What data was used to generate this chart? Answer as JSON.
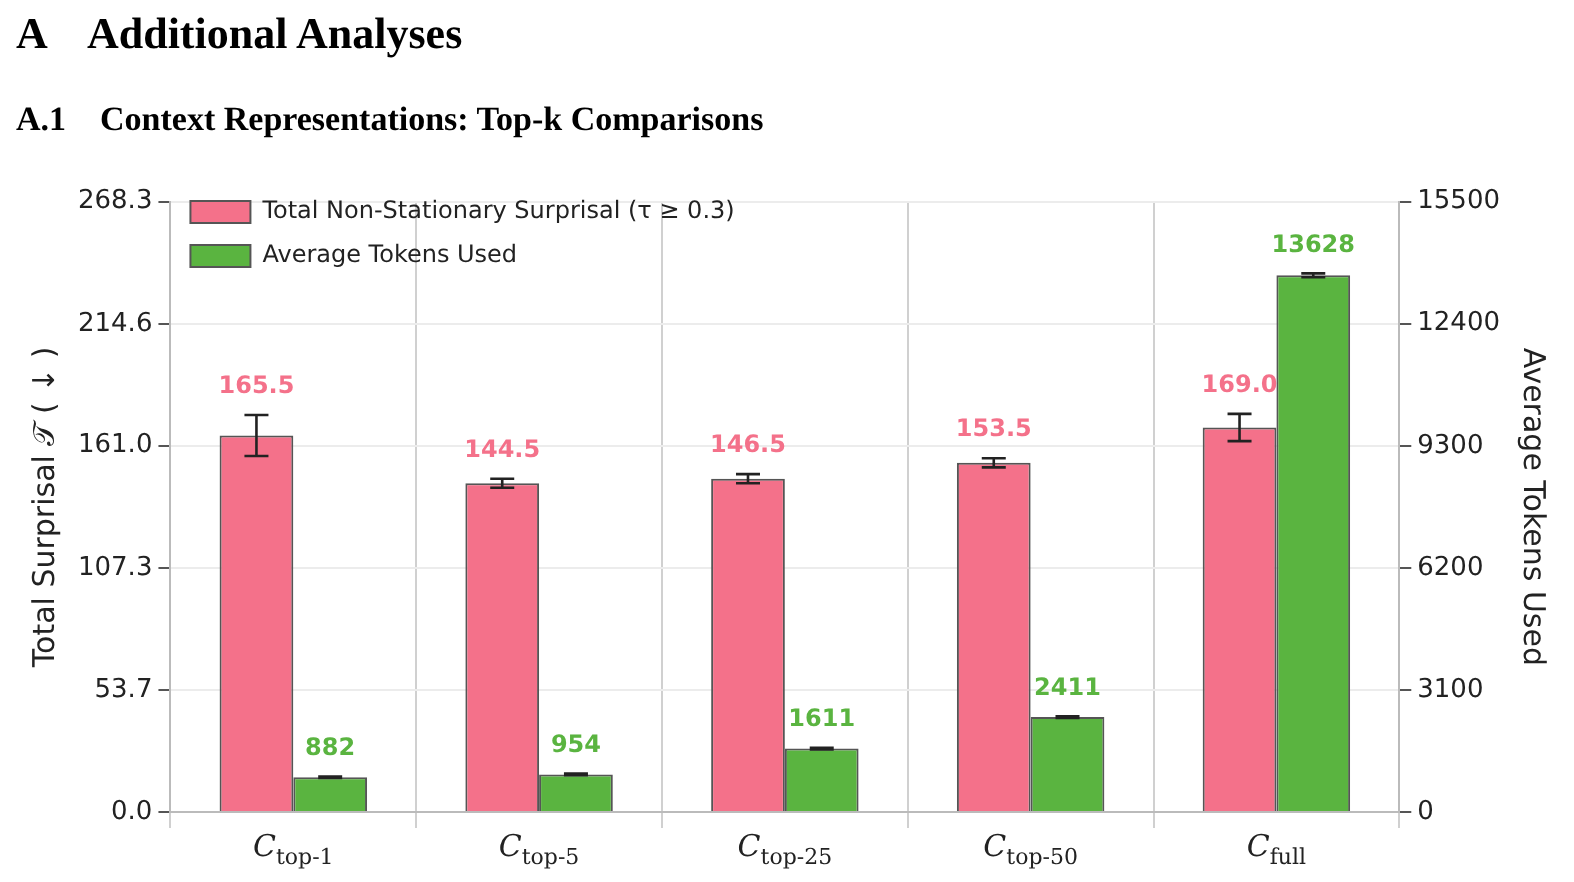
{
  "chart_data": {
    "type": "bar",
    "title": "A    Additional Analyses",
    "subtitle": "A.1    Context Representations: Top-k Comparisons",
    "categories": [
      "C$_{top-1}$",
      "C$_{top-5}$",
      "C$_{top-25}$",
      "C$_{top-50}$",
      "C$_{full}$"
    ],
    "series": [
      {
        "name": "Total Non-Stationary Surprisal (τ ≥ 0.3)",
        "color": "#f4718a",
        "values": [
          165.5,
          144.5,
          146.5,
          153.5,
          169.0
        ],
        "errors": [
          9,
          2,
          2,
          2,
          6
        ],
        "value_labels": [
          "165.5",
          "144.5",
          "146.5",
          "153.5",
          "169.0"
        ]
      },
      {
        "name": "Average Tokens Used",
        "color": "#5ab440",
        "axis": "y2",
        "values": [
          882,
          954,
          1611,
          2411,
          13628
        ],
        "errors": [
          20,
          20,
          20,
          20,
          50
        ],
        "value_labels": [
          "882",
          "954",
          "1611",
          "2411",
          "13628"
        ]
      }
    ],
    "ylabel": "Total Surprisal 𝒯 ( ↓ )",
    "y2label": "Average Tokens Used",
    "ylim": [
      0,
      268.3
    ],
    "yticks": [
      {
        "value": 0,
        "label": "0.0"
      },
      53.7,
      107.3,
      {
        "value": 161,
        "label": "161.0"
      },
      214.6,
      268.3
    ],
    "y2lim": [
      0,
      15500
    ],
    "y2ticks": [
      0,
      3100,
      6200,
      9300,
      12400,
      15500
    ],
    "grid": true,
    "legend": "top left"
  }
}
